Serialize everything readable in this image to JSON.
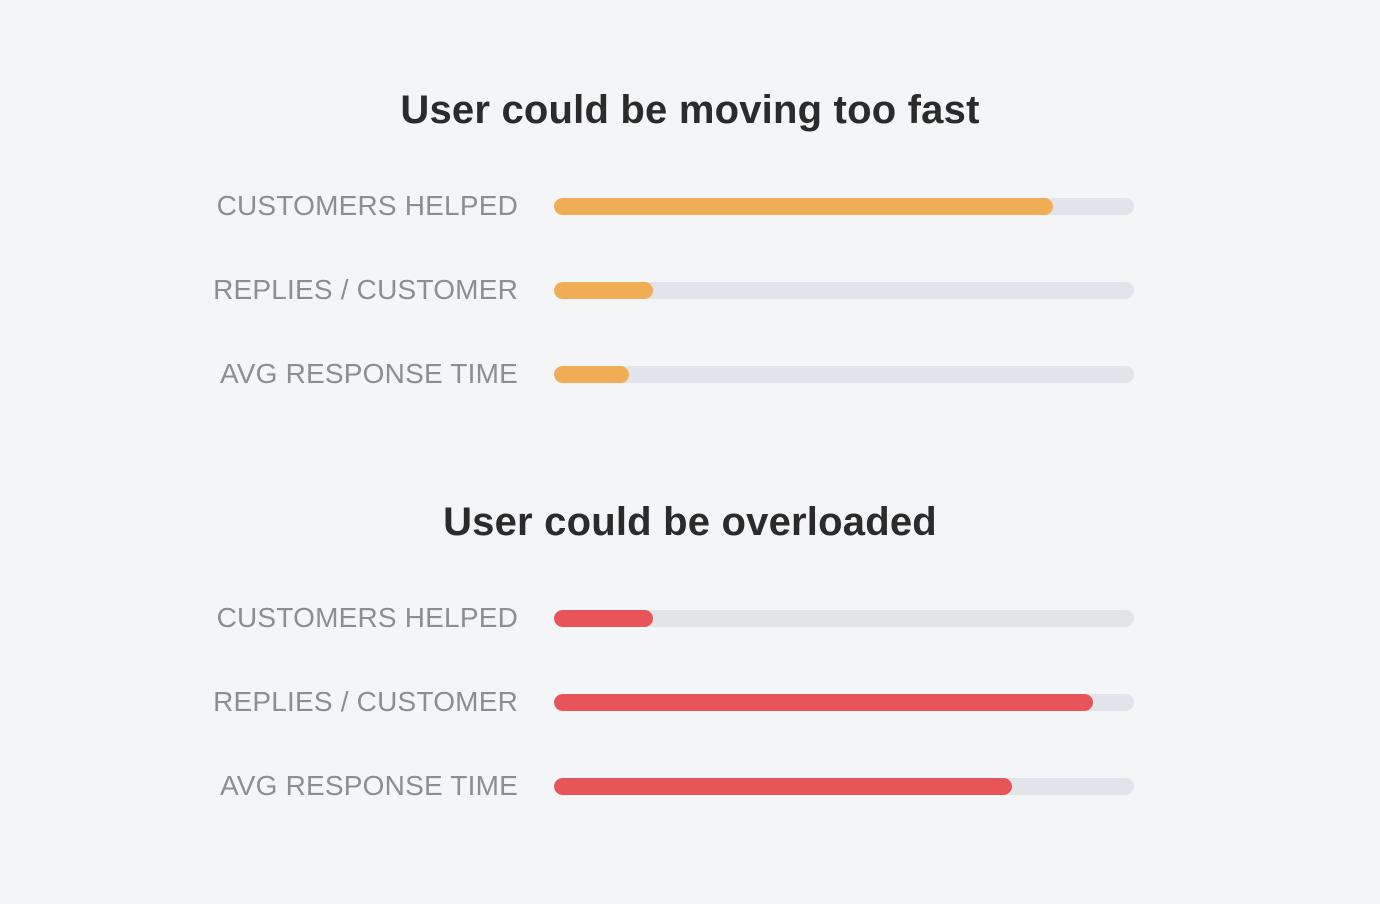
{
  "chart_data": [
    {
      "type": "bar",
      "orientation": "horizontal",
      "title": "User could be moving too fast",
      "categories": [
        "CUSTOMERS HELPED",
        "REPLIES / CUSTOMER",
        "AVG RESPONSE TIME"
      ],
      "values": [
        0.86,
        0.17,
        0.13
      ],
      "ylim": [
        0,
        1
      ],
      "color": "#f0ad55",
      "track_color": "#e1e4e8"
    },
    {
      "type": "bar",
      "orientation": "horizontal",
      "title": "User could be overloaded",
      "categories": [
        "CUSTOMERS HELPED",
        "REPLIES / CUSTOMER",
        "AVG RESPONSE TIME"
      ],
      "values": [
        0.17,
        0.93,
        0.79
      ],
      "ylim": [
        0,
        1
      ],
      "color": "#e85559",
      "track_color": "#e1e4e8"
    }
  ]
}
